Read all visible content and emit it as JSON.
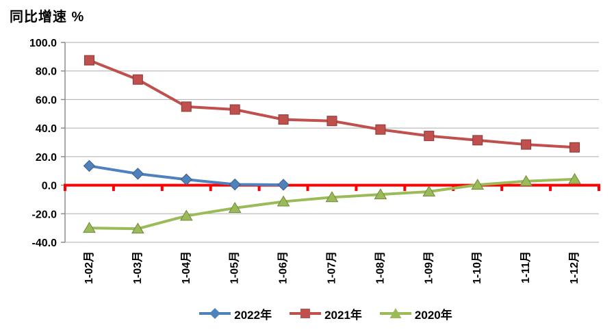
{
  "title": "同比增速 %",
  "chart_data": {
    "type": "line",
    "title": "同比增速 %",
    "ylabel": "同比增速%",
    "xlabel": "",
    "categories": [
      "1-02月",
      "1-03月",
      "1-04月",
      "1-05月",
      "1-06月",
      "1-07月",
      "1-08月",
      "1-09月",
      "1-10月",
      "1-11月",
      "1-12月"
    ],
    "series": [
      {
        "name": "2022年",
        "marker": "diamond",
        "color": "#4F81BD",
        "values": [
          13.5,
          8.0,
          4.0,
          0.5,
          0.3,
          null,
          null,
          null,
          null,
          null,
          null
        ]
      },
      {
        "name": "2021年",
        "marker": "square",
        "color": "#C0504D",
        "values": [
          87.5,
          74.0,
          55.0,
          53.0,
          46.0,
          45.0,
          39.0,
          34.5,
          31.5,
          28.5,
          26.5
        ]
      },
      {
        "name": "2020年",
        "marker": "triangle",
        "color": "#9BBB59",
        "values": [
          -30.0,
          -30.5,
          -21.5,
          -16.0,
          -11.5,
          -8.5,
          -6.5,
          -4.5,
          0.2,
          2.8,
          4.2
        ]
      }
    ],
    "ylim": [
      -40,
      100
    ],
    "y_ticks": [
      "100.0",
      "80.0",
      "60.0",
      "40.0",
      "20.0",
      "0.0",
      "-20.0",
      "-40.0"
    ],
    "zero_line_color": "#FF0000",
    "grid_color": "#ABABAB",
    "axis_color": "#8C8C8C",
    "grid": true,
    "legend_position": "bottom"
  }
}
